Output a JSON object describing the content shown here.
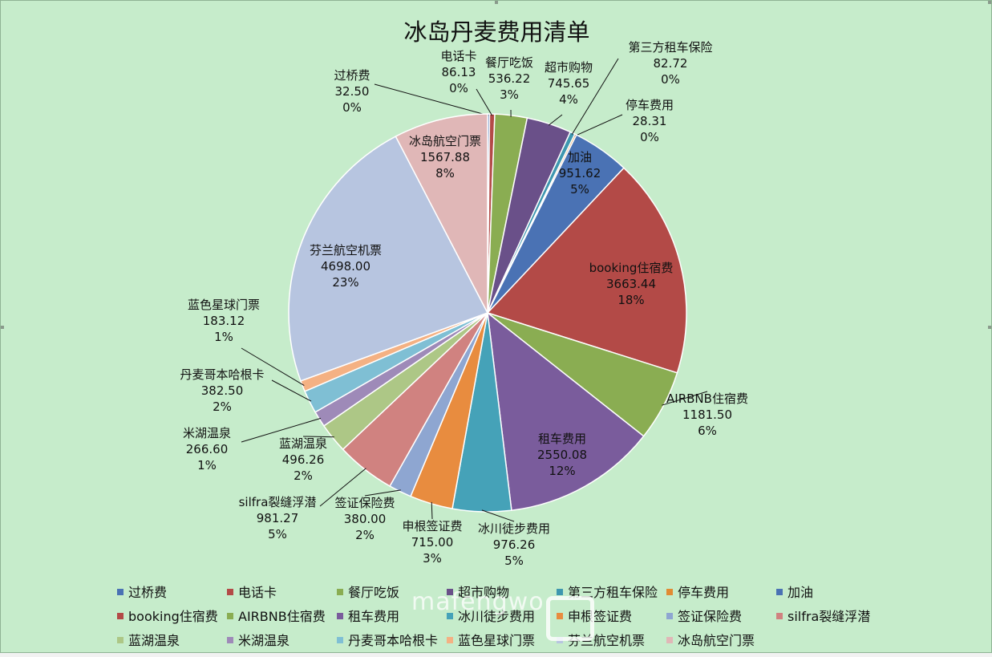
{
  "chart_data": {
    "type": "pie",
    "title": "冰岛丹麦费用清单",
    "series": [
      {
        "name": "过桥费",
        "value": 32.5,
        "value_text": "32.50",
        "percent_text": "0%",
        "color": "#4a72b4"
      },
      {
        "name": "电话卡",
        "value": 86.13,
        "value_text": "86.13",
        "percent_text": "0%",
        "color": "#b34a47"
      },
      {
        "name": "餐厅吃饭",
        "value": 536.22,
        "value_text": "536.22",
        "percent_text": "3%",
        "color": "#8aad52"
      },
      {
        "name": "超市购物",
        "value": 745.65,
        "value_text": "745.65",
        "percent_text": "4%",
        "color": "#6a5089"
      },
      {
        "name": "第三方租车保险",
        "value": 82.72,
        "value_text": "82.72",
        "percent_text": "0%",
        "color": "#3e97af"
      },
      {
        "name": "停车费用",
        "value": 28.31,
        "value_text": "28.31",
        "percent_text": "0%",
        "color": "#e18b33"
      },
      {
        "name": "加油",
        "value": 951.62,
        "value_text": "951.62",
        "percent_text": "5%",
        "color": "#4a72b4"
      },
      {
        "name": "booking住宿费",
        "value": 3663.44,
        "value_text": "3663.44",
        "percent_text": "18%",
        "color": "#b34a47"
      },
      {
        "name": "AIRBNB住宿费",
        "value": 1181.5,
        "value_text": "1181.50",
        "percent_text": "6%",
        "color": "#8aad52"
      },
      {
        "name": "租车费用",
        "value": 2550.08,
        "value_text": "2550.08",
        "percent_text": "12%",
        "color": "#7a5c9c"
      },
      {
        "name": "冰川徒步费用",
        "value": 976.26,
        "value_text": "976.26",
        "percent_text": "5%",
        "color": "#45a2b8"
      },
      {
        "name": "申根签证费",
        "value": 715.0,
        "value_text": "715.00",
        "percent_text": "3%",
        "color": "#e88c3f"
      },
      {
        "name": "签证保险费",
        "value": 380.0,
        "value_text": "380.00",
        "percent_text": "2%",
        "color": "#8ea6d1"
      },
      {
        "name": "silfra裂缝浮潜",
        "value": 981.27,
        "value_text": "981.27",
        "percent_text": "5%",
        "color": "#d08280"
      },
      {
        "name": "蓝湖温泉",
        "value": 496.26,
        "value_text": "496.26",
        "percent_text": "2%",
        "color": "#adc786"
      },
      {
        "name": "米湖温泉",
        "value": 266.6,
        "value_text": "266.60",
        "percent_text": "1%",
        "color": "#9e8ab8"
      },
      {
        "name": "丹麦哥本哈根卡",
        "value": 382.5,
        "value_text": "382.50",
        "percent_text": "2%",
        "color": "#7fbfd4"
      },
      {
        "name": "蓝色星球门票",
        "value": 183.12,
        "value_text": "183.12",
        "percent_text": "1%",
        "color": "#f4b183"
      },
      {
        "name": "芬兰航空机票",
        "value": 4698.0,
        "value_text": "4698.00",
        "percent_text": "23%",
        "color": "#b7c5e0"
      },
      {
        "name": "冰岛航空门票",
        "value": 1567.88,
        "value_text": "1567.88",
        "percent_text": "8%",
        "color": "#e0b7b7"
      }
    ],
    "legend_position": "bottom"
  },
  "watermark_text": "mafengwo"
}
